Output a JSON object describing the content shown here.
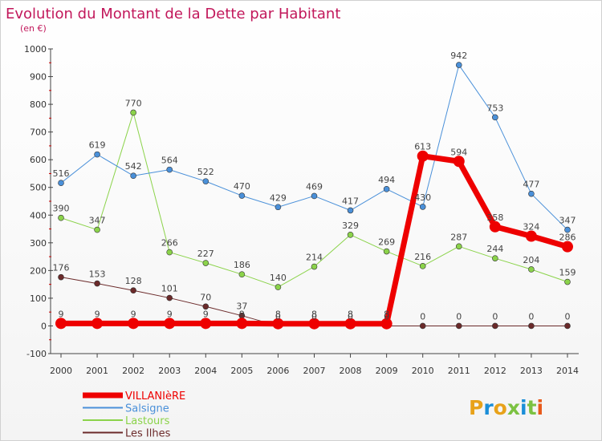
{
  "chart_data": {
    "type": "line",
    "title": "Evolution du Montant de la Dette par Habitant",
    "subtitle": "(en €)",
    "categories": [
      "2000",
      "2001",
      "2002",
      "2003",
      "2004",
      "2005",
      "2006",
      "2007",
      "2008",
      "2009",
      "2010",
      "2011",
      "2012",
      "2013",
      "2014"
    ],
    "y_ticks": [
      "-100",
      "0",
      "100",
      "200",
      "300",
      "400",
      "500",
      "600",
      "700",
      "800",
      "900",
      "1000"
    ],
    "ylim": [
      -100,
      1000
    ],
    "grid": false,
    "legend_position": "bottom-left",
    "series": [
      {
        "name": "VILLANIèRE",
        "color": "#ee0000",
        "values": [
          9,
          9,
          9,
          9,
          9,
          9,
          8,
          8,
          8,
          8,
          613,
          594,
          358,
          324,
          286
        ]
      },
      {
        "name": "Salsigne",
        "color": "#4a90d9",
        "values": [
          516,
          619,
          542,
          564,
          522,
          470,
          429,
          469,
          417,
          494,
          430,
          942,
          753,
          477,
          347
        ]
      },
      {
        "name": "Lastours",
        "color": "#8bd34a",
        "values": [
          390,
          347,
          770,
          266,
          227,
          186,
          140,
          214,
          329,
          269,
          216,
          287,
          244,
          204,
          159
        ]
      },
      {
        "name": "Les Ilhes",
        "color": "#6b2a2a",
        "values": [
          176,
          153,
          128,
          101,
          70,
          37,
          0,
          0,
          0,
          0,
          0,
          0,
          0,
          0,
          0
        ]
      }
    ],
    "labels": {
      "VILLANIèRE": [
        "9",
        "9",
        "9",
        "9",
        "9",
        "9",
        "8",
        "8",
        "8",
        "8",
        "613",
        "594",
        "358",
        "324",
        "286"
      ],
      "Salsigne": [
        "516",
        "619",
        "542",
        "564",
        "522",
        "470",
        "429",
        "469",
        "417",
        "494",
        "430",
        "942",
        "753",
        "477",
        "347"
      ],
      "Lastours": [
        "390",
        "347",
        "770",
        "266",
        "227",
        "186",
        "140",
        "214",
        "329",
        "269",
        "216",
        "287",
        "244",
        "204",
        "159"
      ],
      "Les Ilhes": [
        "176",
        "153",
        "128",
        "101",
        "70",
        "37",
        "0",
        "0",
        "0",
        "0",
        "0",
        "0",
        "0",
        "0",
        "0"
      ]
    }
  },
  "brand": {
    "logo_text": "Proxiti",
    "colors": [
      "#e8a21a",
      "#1a8ed8",
      "#e8a21a",
      "#7cc242",
      "#1a8ed8",
      "#7cc242",
      "#e85a1a"
    ]
  }
}
